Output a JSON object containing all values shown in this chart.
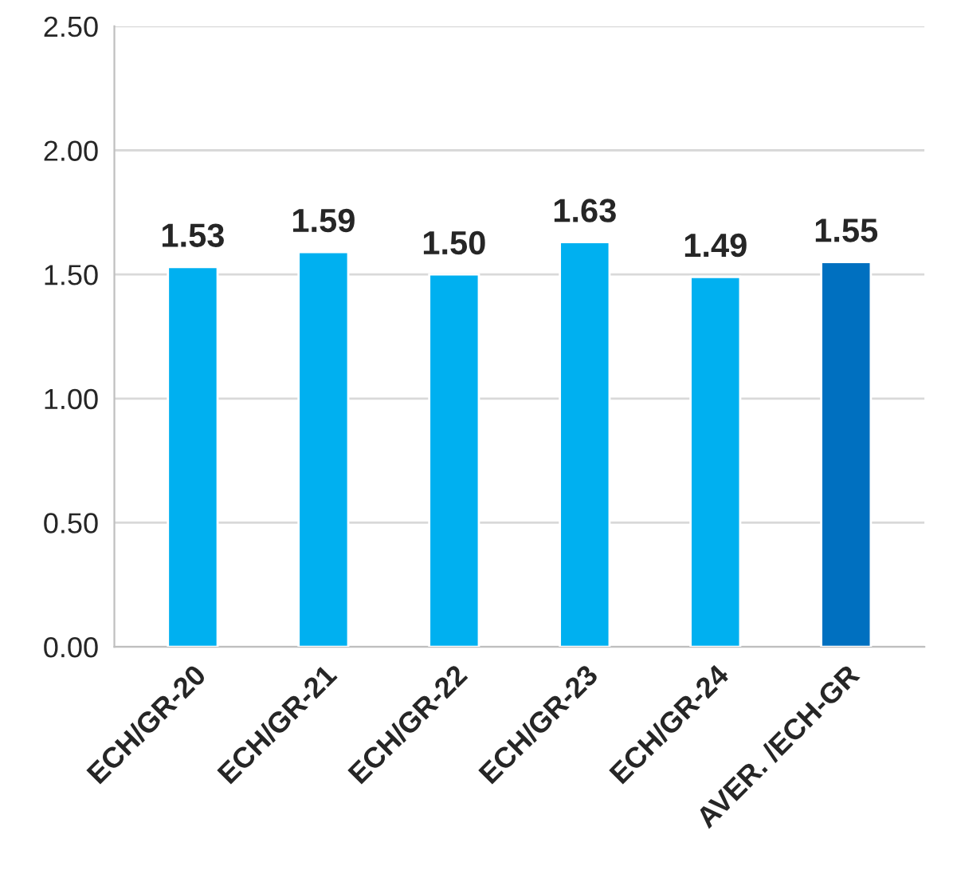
{
  "chart_data": {
    "type": "bar",
    "categories": [
      "ECH/GR-20",
      "ECH/GR-21",
      "ECH/GR-22",
      "ECH/GR-23",
      "ECH/GR-24",
      "AVER. /ECH-GR"
    ],
    "values": [
      1.53,
      1.59,
      1.5,
      1.63,
      1.49,
      1.55
    ],
    "colors": [
      "#00b0f0",
      "#00b0f0",
      "#00b0f0",
      "#00b0f0",
      "#00b0f0",
      "#0070c0"
    ],
    "value_labels": [
      "1.53",
      "1.59",
      "1.50",
      "1.63",
      "1.49",
      "1.55"
    ],
    "ylim": [
      0,
      2.5
    ],
    "yticks": [
      {
        "value": 0,
        "label": "0.00"
      },
      {
        "value": 0.5,
        "label": "0.50"
      },
      {
        "value": 1,
        "label": "1.00"
      },
      {
        "value": 1.5,
        "label": "1.50"
      },
      {
        "value": 2,
        "label": "2.00"
      },
      {
        "value": 2.5,
        "label": "2.50"
      }
    ],
    "grid": "y",
    "legend": false
  }
}
